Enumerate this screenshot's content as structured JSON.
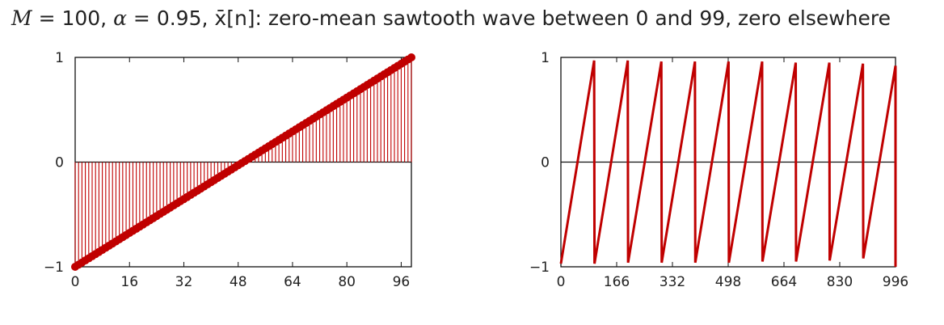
{
  "title": {
    "m_symbol": "M",
    "m_value": "= 100,",
    "alpha_symbol": "α",
    "alpha_value": "= 0.95,",
    "xbar_symbol": "x̄",
    "xbar_arg": "[n]",
    "description": ": zero-mean sawtooth wave between 0 and 99, zero elsewhere"
  },
  "colors": {
    "series": "#c00000",
    "axis": "#111111"
  },
  "chart_data": [
    {
      "type": "stem",
      "title": "",
      "xlabel": "",
      "ylabel": "",
      "x": {
        "start": 0,
        "end": 99,
        "step": 1
      },
      "y_formula": "y = -1 + 2*n/99",
      "xlim": [
        0,
        99
      ],
      "ylim": [
        -1,
        1
      ],
      "xticks": [
        0,
        16,
        32,
        48,
        64,
        80,
        96
      ],
      "xtick_labels": [
        "0",
        "16",
        "32",
        "48",
        "64",
        "80",
        "96"
      ],
      "yticks": [
        -1,
        0,
        1
      ],
      "ytick_labels": [
        "−1",
        "0",
        "1"
      ],
      "grid": false,
      "legend": "none"
    },
    {
      "type": "line",
      "title": "",
      "xlabel": "",
      "ylabel": "",
      "period": 100,
      "num_periods": 10,
      "period_peaks": [
        0.97,
        0.97,
        0.96,
        0.96,
        0.96,
        0.96,
        0.95,
        0.95,
        0.94,
        0.92
      ],
      "xlim": [
        0,
        996
      ],
      "ylim": [
        -1,
        1
      ],
      "xticks": [
        0,
        166,
        332,
        498,
        664,
        830,
        996
      ],
      "xtick_labels": [
        "0",
        "166",
        "332",
        "498",
        "664",
        "830",
        "996"
      ],
      "yticks": [
        -1,
        0,
        1
      ],
      "ytick_labels": [
        "−1",
        "0",
        "1"
      ],
      "grid": false,
      "legend": "none"
    }
  ]
}
